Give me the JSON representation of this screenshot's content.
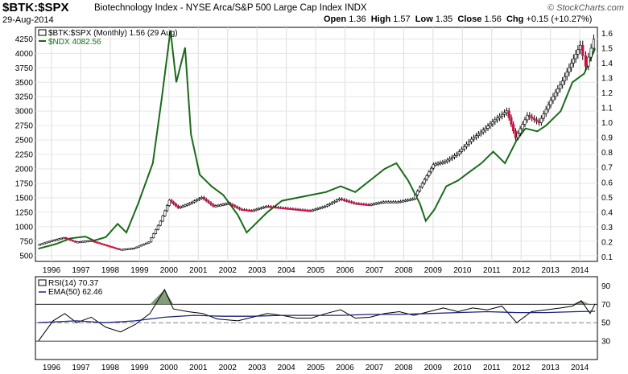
{
  "header": {
    "symbol": "$BTK:$SPX",
    "description": "Biotechnology Index - NYSE Arca/S&P 500 Large Cap Index  INDX",
    "date": "29-Aug-2014",
    "credit": "© StockCharts.com",
    "open_label": "Open",
    "open": "1.36",
    "high_label": "High",
    "high": "1.57",
    "low_label": "Low",
    "low": "1.35",
    "close_label": "Close",
    "close": "1.56",
    "chg_label": "Chg",
    "chg": "+0.15 (+10.27%)"
  },
  "chart_data": [
    {
      "type": "line",
      "legend": [
        {
          "name": "$BTK:$SPX (Monthly) 1.56 (29 Aug)",
          "color": "#000000"
        },
        {
          "name": "$NDX 4082.56",
          "color": "#1a6b1a"
        }
      ],
      "left_axis_ticks": [
        500,
        750,
        1000,
        1250,
        1500,
        1750,
        2000,
        2250,
        2500,
        2750,
        3000,
        3250,
        3500,
        3750,
        4000,
        4250
      ],
      "right_axis_ticks": [
        0.1,
        0.2,
        0.3,
        0.4,
        0.5,
        0.6,
        0.7,
        0.8,
        0.9,
        1.0,
        1.1,
        1.2,
        1.3,
        1.4,
        1.5,
        1.6
      ],
      "x_ticks": [
        "1996",
        "1997",
        "1998",
        "1999",
        "2000",
        "2001",
        "2002",
        "2003",
        "2004",
        "2005",
        "2006",
        "2007",
        "2008",
        "2009",
        "2010",
        "2011",
        "2012",
        "2013",
        "2014"
      ],
      "ylim_left": [
        400,
        4450
      ],
      "ylim_right": [
        0.07,
        1.64
      ],
      "series": [
        {
          "name": "$BTK:$SPX",
          "axis": "right",
          "points": [
            [
              1995.7,
              0.18
            ],
            [
              1996.2,
              0.21
            ],
            [
              1996.6,
              0.23
            ],
            [
              1997.0,
              0.2
            ],
            [
              1997.5,
              0.21
            ],
            [
              1998.0,
              0.18
            ],
            [
              1998.5,
              0.15
            ],
            [
              1999.0,
              0.16
            ],
            [
              1999.5,
              0.2
            ],
            [
              1999.9,
              0.34
            ],
            [
              2000.2,
              0.48
            ],
            [
              2000.5,
              0.43
            ],
            [
              2000.9,
              0.46
            ],
            [
              2001.3,
              0.5
            ],
            [
              2001.7,
              0.44
            ],
            [
              2002.2,
              0.46
            ],
            [
              2002.6,
              0.42
            ],
            [
              2003.0,
              0.41
            ],
            [
              2003.5,
              0.44
            ],
            [
              2004.0,
              0.43
            ],
            [
              2004.5,
              0.42
            ],
            [
              2005.0,
              0.41
            ],
            [
              2005.5,
              0.44
            ],
            [
              2006.0,
              0.49
            ],
            [
              2006.5,
              0.46
            ],
            [
              2007.0,
              0.45
            ],
            [
              2007.5,
              0.47
            ],
            [
              2008.0,
              0.47
            ],
            [
              2008.5,
              0.49
            ],
            [
              2008.9,
              0.62
            ],
            [
              2009.2,
              0.72
            ],
            [
              2009.6,
              0.74
            ],
            [
              2010.0,
              0.79
            ],
            [
              2010.5,
              0.89
            ],
            [
              2010.9,
              0.95
            ],
            [
              2011.3,
              1.02
            ],
            [
              2011.7,
              1.08
            ],
            [
              2012.0,
              0.9
            ],
            [
              2012.4,
              1.05
            ],
            [
              2012.8,
              1.0
            ],
            [
              2013.2,
              1.15
            ],
            [
              2013.6,
              1.28
            ],
            [
              2013.9,
              1.4
            ],
            [
              2014.2,
              1.52
            ],
            [
              2014.4,
              1.38
            ],
            [
              2014.67,
              1.56
            ]
          ]
        },
        {
          "name": "$NDX",
          "axis": "left",
          "points": [
            [
              1995.7,
              620
            ],
            [
              1996.3,
              700
            ],
            [
              1996.8,
              800
            ],
            [
              1997.3,
              830
            ],
            [
              1997.6,
              760
            ],
            [
              1998.0,
              820
            ],
            [
              1998.4,
              1050
            ],
            [
              1998.7,
              900
            ],
            [
              1999.1,
              1400
            ],
            [
              1999.6,
              2100
            ],
            [
              1999.9,
              3200
            ],
            [
              2000.2,
              4400
            ],
            [
              2000.4,
              3500
            ],
            [
              2000.7,
              4100
            ],
            [
              2000.9,
              2600
            ],
            [
              2001.2,
              1900
            ],
            [
              2001.6,
              1700
            ],
            [
              2002.0,
              1550
            ],
            [
              2002.5,
              1200
            ],
            [
              2002.8,
              900
            ],
            [
              2003.0,
              1000
            ],
            [
              2003.5,
              1250
            ],
            [
              2004.0,
              1450
            ],
            [
              2004.5,
              1500
            ],
            [
              2005.0,
              1550
            ],
            [
              2005.5,
              1600
            ],
            [
              2006.0,
              1700
            ],
            [
              2006.5,
              1600
            ],
            [
              2007.0,
              1800
            ],
            [
              2007.5,
              2000
            ],
            [
              2007.9,
              2100
            ],
            [
              2008.3,
              1800
            ],
            [
              2008.7,
              1400
            ],
            [
              2008.9,
              1100
            ],
            [
              2009.2,
              1300
            ],
            [
              2009.6,
              1700
            ],
            [
              2010.0,
              1800
            ],
            [
              2010.4,
              1950
            ],
            [
              2010.8,
              2100
            ],
            [
              2011.2,
              2300
            ],
            [
              2011.6,
              2100
            ],
            [
              2012.0,
              2500
            ],
            [
              2012.3,
              2700
            ],
            [
              2012.7,
              2650
            ],
            [
              2013.0,
              2750
            ],
            [
              2013.5,
              3000
            ],
            [
              2013.9,
              3500
            ],
            [
              2014.3,
              3650
            ],
            [
              2014.67,
              4082
            ]
          ]
        }
      ]
    },
    {
      "type": "line",
      "legend": [
        {
          "name": "RSI(14) 70.37",
          "color": "#000000"
        },
        {
          "name": "EMA(50) 62.46",
          "color": "#1a237e"
        }
      ],
      "y_ticks": [
        30,
        50,
        70,
        90
      ],
      "reference_lines": [
        30,
        50,
        70
      ],
      "ylim": [
        10,
        100
      ],
      "series": [
        {
          "name": "RSI(14)",
          "points": [
            [
              1995.7,
              30
            ],
            [
              1996.2,
              52
            ],
            [
              1996.6,
              60
            ],
            [
              1997.0,
              50
            ],
            [
              1997.5,
              56
            ],
            [
              1998.0,
              45
            ],
            [
              1998.5,
              40
            ],
            [
              1999.0,
              48
            ],
            [
              1999.5,
              60
            ],
            [
              2000.0,
              86
            ],
            [
              2000.3,
              65
            ],
            [
              2000.8,
              62
            ],
            [
              2001.3,
              60
            ],
            [
              2001.8,
              54
            ],
            [
              2002.5,
              52
            ],
            [
              2003.0,
              56
            ],
            [
              2003.5,
              60
            ],
            [
              2004.0,
              58
            ],
            [
              2004.5,
              55
            ],
            [
              2005.0,
              55
            ],
            [
              2005.5,
              60
            ],
            [
              2006.0,
              64
            ],
            [
              2006.5,
              55
            ],
            [
              2007.0,
              56
            ],
            [
              2007.5,
              60
            ],
            [
              2008.0,
              62
            ],
            [
              2008.5,
              58
            ],
            [
              2009.0,
              62
            ],
            [
              2009.5,
              66
            ],
            [
              2010.0,
              62
            ],
            [
              2010.5,
              66
            ],
            [
              2011.0,
              64
            ],
            [
              2011.5,
              68
            ],
            [
              2012.0,
              50
            ],
            [
              2012.5,
              62
            ],
            [
              2013.0,
              64
            ],
            [
              2013.5,
              66
            ],
            [
              2013.9,
              68
            ],
            [
              2014.2,
              74
            ],
            [
              2014.5,
              60
            ],
            [
              2014.67,
              70.37
            ]
          ]
        },
        {
          "name": "EMA(50)",
          "points": [
            [
              1995.7,
              50
            ],
            [
              1997.0,
              52
            ],
            [
              1998.0,
              50
            ],
            [
              1999.0,
              52
            ],
            [
              2000.0,
              56
            ],
            [
              2001.0,
              58
            ],
            [
              2002.0,
              57
            ],
            [
              2003.0,
              57
            ],
            [
              2004.0,
              58
            ],
            [
              2005.0,
              58
            ],
            [
              2006.0,
              58
            ],
            [
              2007.0,
              59
            ],
            [
              2008.0,
              59
            ],
            [
              2009.0,
              60
            ],
            [
              2010.0,
              61
            ],
            [
              2011.0,
              62
            ],
            [
              2012.0,
              61
            ],
            [
              2013.0,
              61
            ],
            [
              2014.0,
              62
            ],
            [
              2014.67,
              62.46
            ]
          ]
        }
      ]
    }
  ]
}
